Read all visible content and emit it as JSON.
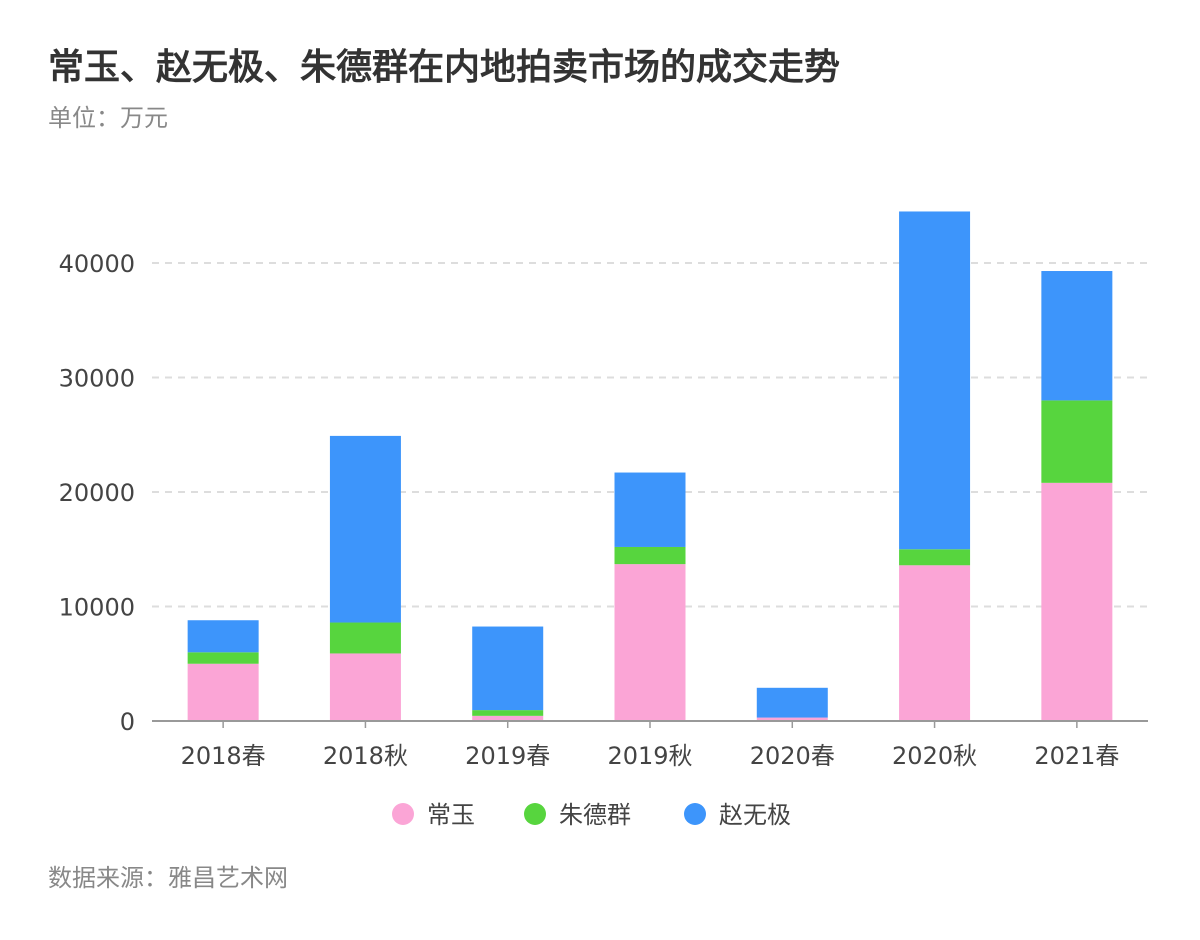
{
  "title": "常玉、赵无极、朱德群在内地拍卖市场的成交走势",
  "subtitle": "单位：万元",
  "source": "数据来源：雅昌艺术网",
  "chart_data": {
    "type": "bar",
    "stacked": true,
    "categories": [
      "2018春",
      "2018秋",
      "2019春",
      "2019秋",
      "2020春",
      "2020秋",
      "2021春"
    ],
    "series": [
      {
        "name": "常玉",
        "color": "#FBA5D6",
        "values": [
          5000,
          5900,
          450,
          13700,
          300,
          13600,
          20800
        ]
      },
      {
        "name": "朱德群",
        "color": "#57D53E",
        "values": [
          1000,
          2700,
          500,
          1500,
          0,
          1400,
          7200
        ]
      },
      {
        "name": "赵无极",
        "color": "#3D95FB",
        "values": [
          2800,
          16300,
          7300,
          6500,
          2600,
          29500,
          11300
        ]
      }
    ],
    "yticks": [
      0,
      10000,
      20000,
      30000,
      40000
    ],
    "ylim": [
      0,
      48000
    ],
    "grid": true,
    "legend": "bottom-center"
  }
}
